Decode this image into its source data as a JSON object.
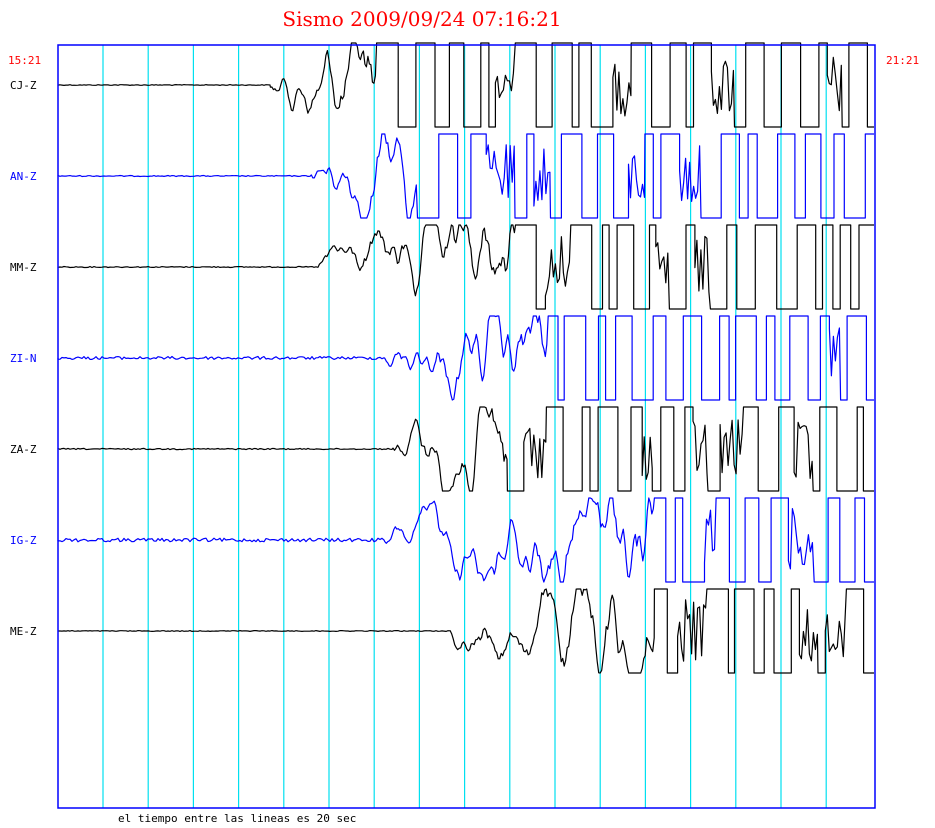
{
  "chart_data": {
    "type": "line",
    "title": "Sismo 2009/09/24 07:16:21",
    "time_start_label": "15:21",
    "time_end_label": "21:21",
    "footer_note": "el tiempo entre las lineas es 20 sec",
    "gridline_interval_sec": 20,
    "gridlines": 17,
    "colors": {
      "title": "#ff0000",
      "time_labels": "#ff0000",
      "frame": "#0000ff",
      "gridlines": "#00e0f0",
      "black_trace": "#000000",
      "blue_trace": "#0000ff"
    },
    "series": [
      {
        "name": "CJ-Z",
        "color": "#000000",
        "onset": 0.26,
        "amp_before": 0.4,
        "clip_after": 0.39
      },
      {
        "name": "AN-Z",
        "color": "#0000ff",
        "onset": 0.31,
        "amp_before": 0.5,
        "clip_after": 0.44
      },
      {
        "name": "MM-Z",
        "color": "#000000",
        "onset": 0.32,
        "amp_before": 0.5,
        "clip_after": 0.56
      },
      {
        "name": "ZI-N",
        "color": "#0000ff",
        "onset": 0.4,
        "amp_before": 1.5,
        "clip_after": 0.6
      },
      {
        "name": "ZA-Z",
        "color": "#000000",
        "onset": 0.41,
        "amp_before": 0.6,
        "clip_after": 0.55
      },
      {
        "name": "IG-Z",
        "color": "#0000ff",
        "onset": 0.4,
        "amp_before": 1.8,
        "clip_after": 0.73
      },
      {
        "name": "ME-Z",
        "color": "#000000",
        "onset": 0.48,
        "amp_before": 0.4,
        "clip_after": 0.73
      }
    ]
  }
}
